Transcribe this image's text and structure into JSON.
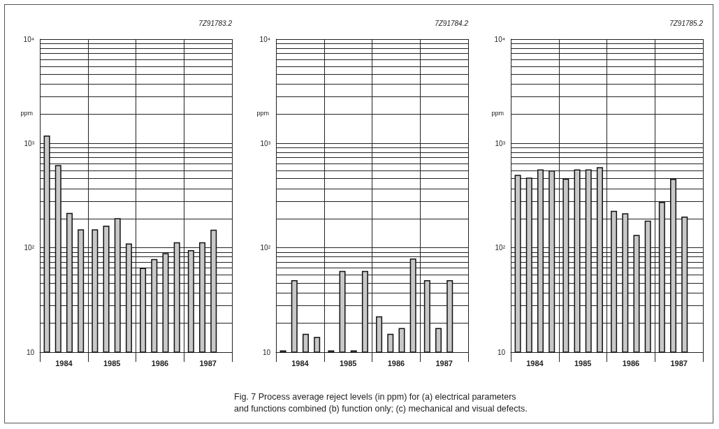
{
  "chart_data": [
    {
      "type": "bar",
      "categories": [
        "1984",
        "1985",
        "1986",
        "1987"
      ],
      "ylabel": "ppm",
      "log": true,
      "grid": true,
      "ylim": [
        10,
        10000
      ],
      "yticks": [
        {
          "value": 10,
          "label": "10"
        },
        {
          "value": 100,
          "label": "10²"
        },
        {
          "value": 1000,
          "label": "10³"
        },
        {
          "value": 10000,
          "label": "10⁴"
        }
      ],
      "series": [
        {
          "color": "#c8c8c8",
          "values": [
            1190,
            150,
            64,
            95
          ]
        },
        {
          "color": "#c8c8c8",
          "values": [
            620,
            163,
            78,
            113
          ]
        },
        {
          "color": "#c8c8c8",
          "values": [
            216,
            192,
            89,
            149
          ]
        },
        {
          "color": "#c8c8c8",
          "values": [
            150,
            110,
            113,
            null
          ]
        }
      ],
      "annotations": [
        "7Z91783.2",
        "Fig. 7  Process average reject levels (in ppm) for (a) electrical parameters and functions combined (b) function only; (c) mechanical and visual defects."
      ]
    },
    {
      "type": "bar",
      "categories": [
        "1984",
        "1985",
        "1986",
        "1987"
      ],
      "ylabel": "ppm",
      "log": true,
      "grid": true,
      "ylim": [
        10,
        10000
      ],
      "yticks": [
        {
          "value": 10,
          "label": "10"
        },
        {
          "value": 100,
          "label": "10²"
        },
        {
          "value": 1000,
          "label": "10³"
        },
        {
          "value": 10000,
          "label": "10⁴"
        }
      ],
      "series": [
        {
          "color": "#c8c8c8",
          "values": [
            10.4,
            10.4,
            22,
            49
          ]
        },
        {
          "color": "#c8c8c8",
          "values": [
            49,
            60,
            15,
            17
          ]
        },
        {
          "color": "#c8c8c8",
          "values": [
            15,
            10.4,
            17,
            49
          ]
        },
        {
          "color": "#c8c8c8",
          "values": [
            14,
            60,
            79,
            null
          ]
        }
      ],
      "annotations": [
        "7Z91784.2"
      ]
    },
    {
      "type": "bar",
      "categories": [
        "1984",
        "1985",
        "1986",
        "1987"
      ],
      "ylabel": "ppm",
      "log": true,
      "grid": true,
      "ylim": [
        10,
        10000
      ],
      "yticks": [
        {
          "value": 10,
          "label": "10"
        },
        {
          "value": 100,
          "label": "10²"
        },
        {
          "value": 1000,
          "label": "10³"
        },
        {
          "value": 10000,
          "label": "10⁴"
        }
      ],
      "series": [
        {
          "color": "#c8c8c8",
          "values": [
            500,
            460,
            226,
            275
          ]
        },
        {
          "color": "#c8c8c8",
          "values": [
            470,
            563,
            214,
            458
          ]
        },
        {
          "color": "#c8c8c8",
          "values": [
            563,
            563,
            133,
            199
          ]
        },
        {
          "color": "#c8c8c8",
          "values": [
            551,
            593,
            182,
            null
          ]
        }
      ],
      "annotations": [
        "7Z91785.2"
      ]
    }
  ]
}
